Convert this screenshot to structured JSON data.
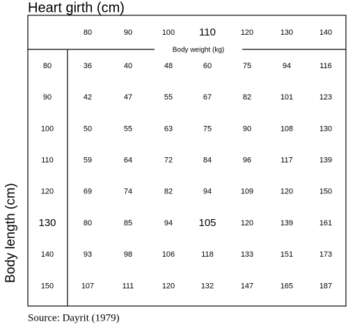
{
  "header": {
    "title": "Heart girth (cm)",
    "side_label": "Body length (cm)",
    "column_caption": "Body weight (kg)"
  },
  "table": {
    "columns": [
      "80",
      "90",
      "100",
      "110",
      "120",
      "130",
      "140"
    ],
    "row_labels": [
      "80",
      "90",
      "100",
      "110",
      "120",
      "130",
      "140",
      "150"
    ],
    "rows": [
      [
        "36",
        "40",
        "48",
        "60",
        "75",
        "94",
        "116"
      ],
      [
        "42",
        "47",
        "55",
        "67",
        "82",
        "101",
        "123"
      ],
      [
        "50",
        "55",
        "63",
        "75",
        "90",
        "108",
        "130"
      ],
      [
        "59",
        "64",
        "72",
        "84",
        "96",
        "117",
        "139"
      ],
      [
        "69",
        "74",
        "82",
        "94",
        "109",
        "120",
        "150"
      ],
      [
        "80",
        "85",
        "94",
        "105",
        "120",
        "139",
        "161"
      ],
      [
        "93",
        "98",
        "106",
        "118",
        "133",
        "151",
        "173"
      ],
      [
        "107",
        "111",
        "120",
        "132",
        "147",
        "165",
        "187"
      ]
    ]
  },
  "footer": {
    "source": "Source: Dayrit (1979)"
  }
}
